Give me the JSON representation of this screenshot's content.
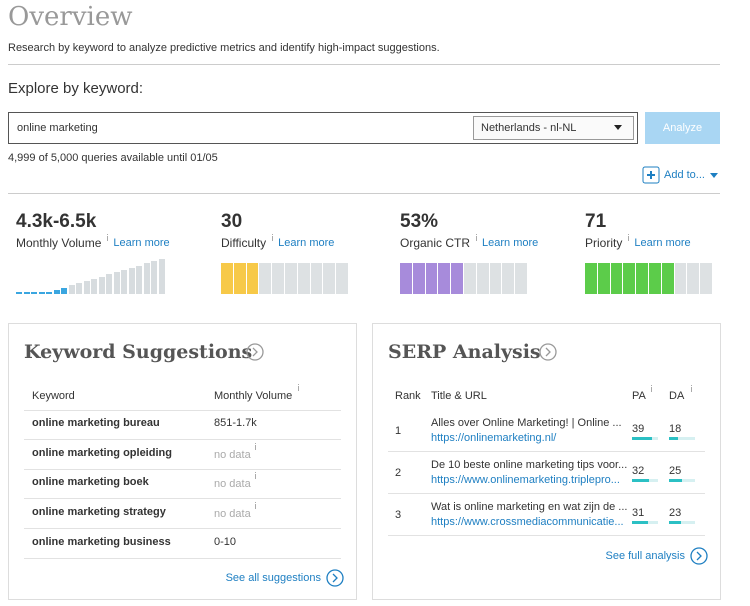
{
  "header": {
    "title": "Overview",
    "subtitle": "Research by keyword to analyze predictive metrics and identify high-impact suggestions."
  },
  "explore": {
    "label": "Explore by keyword:",
    "input": "online marketing",
    "locale": "Netherlands - nl-NL",
    "button": "Analyze",
    "quota": "4,999 of 5,000 queries available until 01/05",
    "add_to": "Add to..."
  },
  "metrics": [
    {
      "value": "4.3k-6.5k",
      "label": "Monthly Volume",
      "link": "Learn more"
    },
    {
      "value": "30",
      "label": "Difficulty",
      "link": "Learn more"
    },
    {
      "value": "53%",
      "label": "Organic CTR",
      "link": "Learn more"
    },
    {
      "value": "71",
      "label": "Priority",
      "link": "Learn more"
    }
  ],
  "suggestions": {
    "title": "Keyword Suggestions",
    "columns": [
      "Keyword",
      "Monthly Volume"
    ],
    "rows": [
      [
        "online marketing bureau",
        "851-1.7k"
      ],
      [
        "online marketing opleiding",
        "no data"
      ],
      [
        "online marketing boek",
        "no data"
      ],
      [
        "online marketing strategy",
        "no data"
      ],
      [
        "online marketing business",
        "0-10"
      ]
    ],
    "footer": "See all suggestions"
  },
  "serp": {
    "title": "SERP Analysis",
    "columns": [
      "Rank",
      "Title & URL",
      "PA",
      "DA"
    ],
    "rows": [
      {
        "rank": 1,
        "title": "Alles over Online Marketing! | Online ...",
        "url": "https://onlinemarketing.nl/",
        "pa": 39,
        "da": 18
      },
      {
        "rank": 2,
        "title": "De 10 beste online marketing tips voor...",
        "url": "https://www.onlinemarketing.triplepro...",
        "pa": 32,
        "da": 25
      },
      {
        "rank": 3,
        "title": "Wat is online marketing en wat zijn de ...",
        "url": "https://www.crossmediacommunicatie...",
        "pa": 31,
        "da": 23
      }
    ],
    "footer": "See full analysis"
  }
}
